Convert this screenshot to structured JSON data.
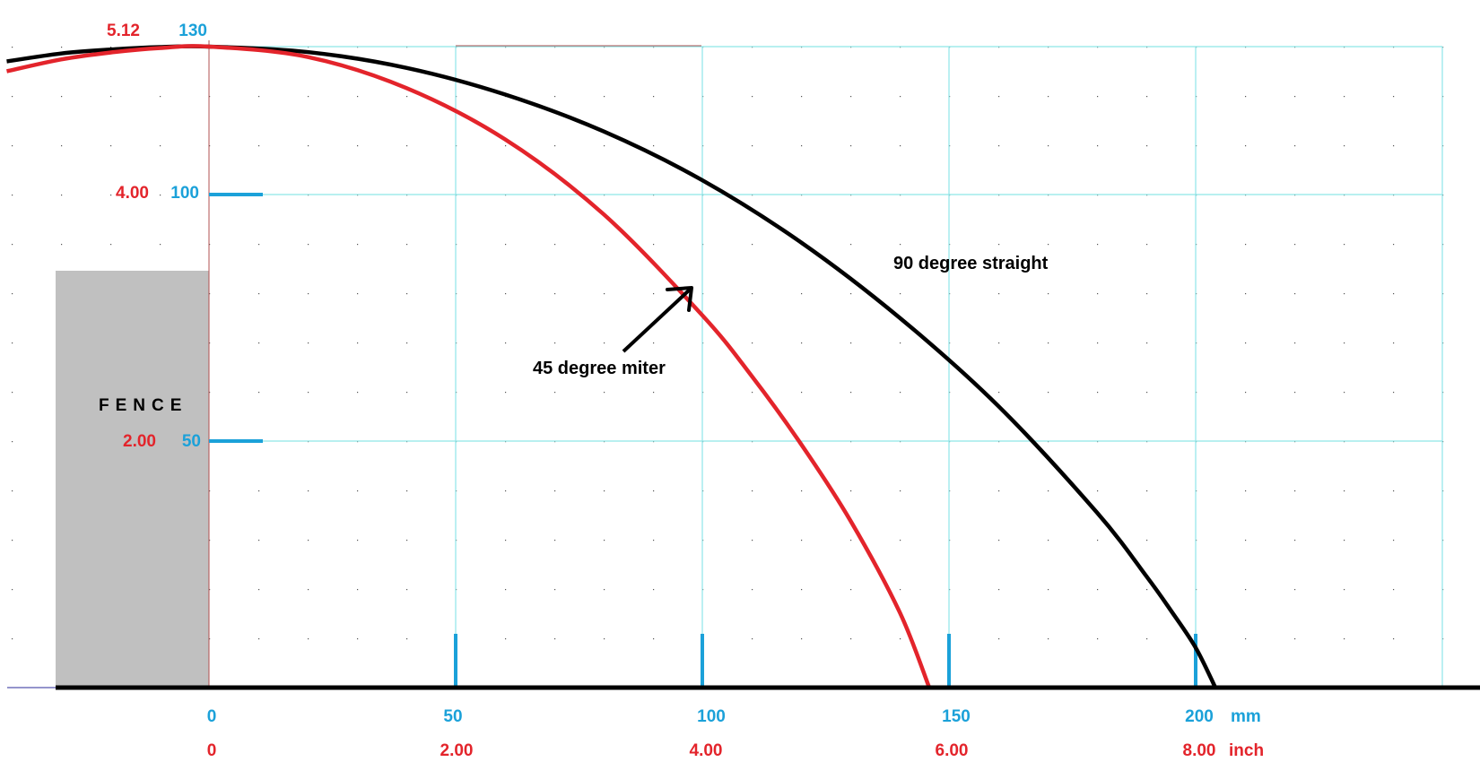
{
  "chart_data": {
    "type": "line",
    "x_unit_primary": "mm",
    "x_unit_secondary": "inch",
    "x_ticks_mm": [
      "0",
      "50",
      "100",
      "150",
      "200"
    ],
    "x_ticks_inch": [
      "0",
      "2.00",
      "4.00",
      "6.00",
      "8.00"
    ],
    "y_ticks_mm": [
      "50",
      "100",
      "130"
    ],
    "y_ticks_inch": [
      "2.00",
      "4.00",
      "5.12"
    ],
    "xlim": [
      -41,
      257
    ],
    "ylim": [
      0,
      130
    ],
    "grid": true,
    "series": [
      {
        "name": "90 degree straight",
        "color": "#000000",
        "x": [
          -41,
          -30,
          -20,
          -10,
          0,
          20,
          40,
          60,
          80,
          100,
          120,
          140,
          160,
          180,
          190,
          195,
          200,
          204
        ],
        "y": [
          127.0,
          128.6,
          129.4,
          129.9,
          130.0,
          128.9,
          125.7,
          120.3,
          112.8,
          102.9,
          90.3,
          75.0,
          57.1,
          35.5,
          22.6,
          15.6,
          8.1,
          0
        ]
      },
      {
        "name": "45 degree miter",
        "color": "#e3242b",
        "x": [
          -41,
          -30,
          -20,
          -10,
          0,
          20,
          40,
          60,
          80,
          100,
          110,
          120,
          130,
          140,
          146
        ],
        "y": [
          125.0,
          127.4,
          128.8,
          129.7,
          130.0,
          127.9,
          121.6,
          111.2,
          96.0,
          75.5,
          63.2,
          49.4,
          33.9,
          15.3,
          0
        ]
      }
    ],
    "annotations": {
      "straight_label": "90 degree straight",
      "miter_label": "45 degree miter",
      "fence_label": "FENCE"
    }
  },
  "legend": {
    "mm_label": "mm",
    "inch_label": "inch"
  },
  "colors": {
    "grid_major": "#8ee6e8",
    "grid_dots": "#555555",
    "mm_blue": "#1ba1d9",
    "inch_red": "#e3242b",
    "fence_gray": "#c0c0c0",
    "axis_black": "#000000",
    "spine_brown": "#b05050"
  }
}
